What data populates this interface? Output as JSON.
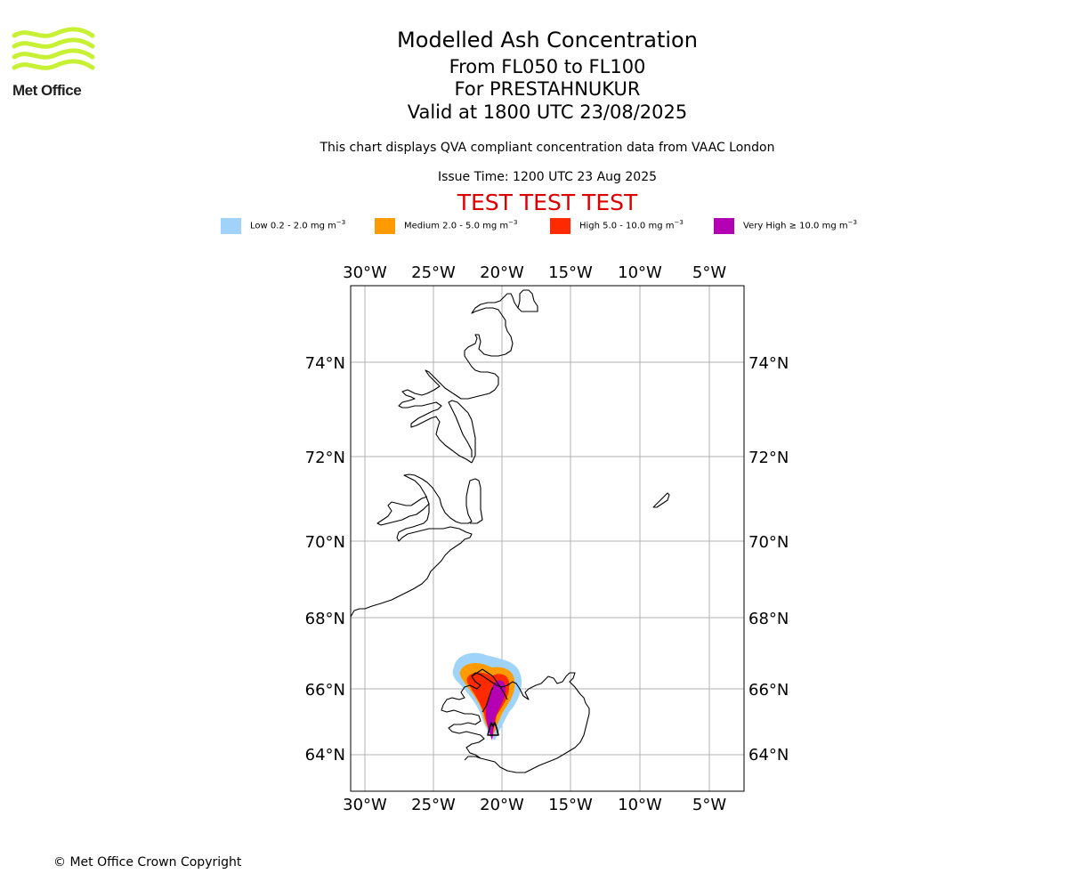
{
  "logo": {
    "text": "Met Office",
    "color": "#c8f034"
  },
  "header": {
    "title": "Modelled Ash Concentration",
    "range": "From FL050 to FL100",
    "location": "For PRESTAHNUKUR",
    "valid": "Valid at 1800 UTC 23/08/2025",
    "description": "This chart displays QVA compliant concentration data from VAAC London",
    "issue_time": "Issue Time: 1200 UTC 23 Aug 2025",
    "test_banner": "TEST TEST TEST",
    "test_color": "#dd0000"
  },
  "legend": [
    {
      "label": "Low 0.2 - 2.0 mg m",
      "color": "#9fd3fa"
    },
    {
      "label": "Medium 2.0 - 5.0 mg m",
      "color": "#ff9a00"
    },
    {
      "label": "High 5.0 - 10.0 mg m",
      "color": "#ff2a00"
    },
    {
      "label": "Very High ≥ 10.0 mg m",
      "color": "#b300b3"
    }
  ],
  "legend_unit_exponent": "−3",
  "map": {
    "lon_ticks": [
      "30°W",
      "25°W",
      "20°W",
      "15°W",
      "10°W",
      "5°W"
    ],
    "lat_ticks": [
      "74°N",
      "72°N",
      "70°N",
      "68°N",
      "66°N",
      "64°N"
    ],
    "grid": true
  },
  "footer": {
    "copyright": "© Met Office Crown Copyright"
  }
}
